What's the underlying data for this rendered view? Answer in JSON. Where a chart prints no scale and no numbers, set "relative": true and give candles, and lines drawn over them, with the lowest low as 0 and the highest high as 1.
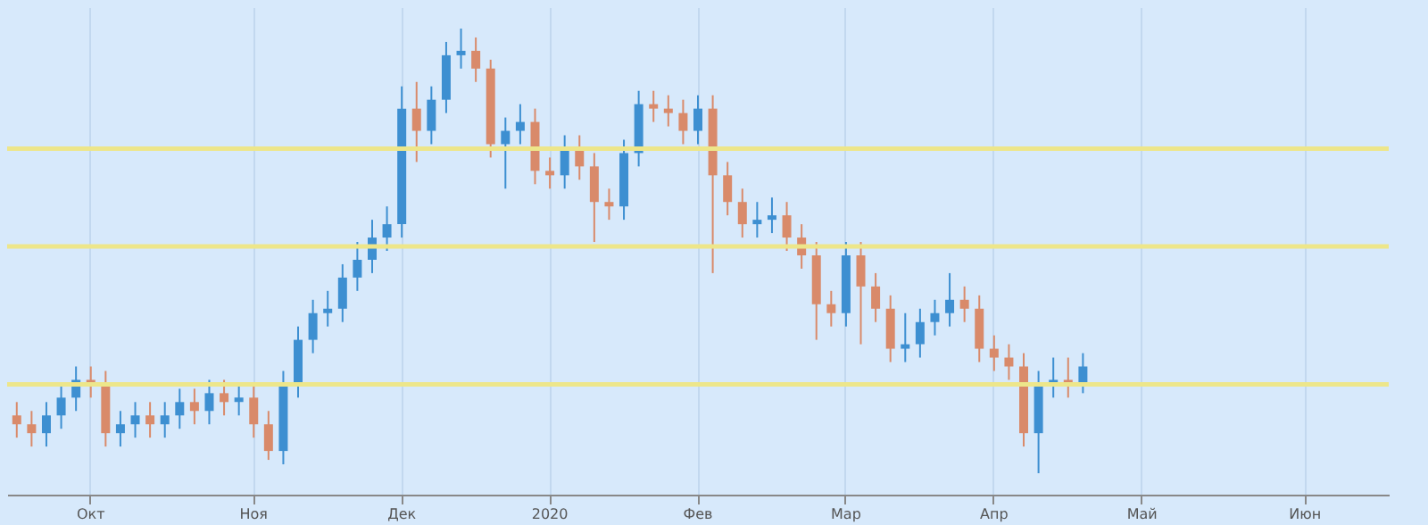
{
  "chart_data": {
    "type": "candlestick",
    "relative": true,
    "grid": "x",
    "categories": [
      null,
      null,
      null,
      null,
      null,
      "Окт",
      null,
      null,
      null,
      null,
      null,
      null,
      null,
      null,
      null,
      null,
      "Ноя",
      null,
      null,
      null,
      null,
      null,
      null,
      null,
      null,
      null,
      "Дек",
      null,
      null,
      null,
      null,
      null,
      null,
      null,
      null,
      null,
      "2020",
      null,
      null,
      null,
      null,
      null,
      null,
      null,
      null,
      null,
      "Фев",
      null,
      null,
      null,
      null,
      null,
      null,
      null,
      null,
      null,
      "Мар",
      null,
      null,
      null,
      null,
      null,
      null,
      null,
      null,
      null,
      "Апр",
      null,
      null,
      null,
      null,
      null,
      null,
      null,
      null,
      null,
      "Май",
      null,
      null,
      null,
      null,
      null,
      null,
      null,
      null,
      null,
      null,
      "Июн",
      null,
      null,
      null,
      null,
      null
    ],
    "ohlc": [
      [
        0.13,
        0.16,
        0.08,
        0.11
      ],
      [
        0.11,
        0.14,
        0.06,
        0.09
      ],
      [
        0.09,
        0.16,
        0.06,
        0.13
      ],
      [
        0.13,
        0.2,
        0.1,
        0.17
      ],
      [
        0.17,
        0.24,
        0.14,
        0.21
      ],
      [
        0.21,
        0.24,
        0.17,
        0.2
      ],
      [
        0.2,
        0.23,
        0.06,
        0.09
      ],
      [
        0.09,
        0.14,
        0.06,
        0.11
      ],
      [
        0.11,
        0.16,
        0.08,
        0.13
      ],
      [
        0.13,
        0.16,
        0.08,
        0.11
      ],
      [
        0.11,
        0.16,
        0.08,
        0.13
      ],
      [
        0.13,
        0.19,
        0.1,
        0.16
      ],
      [
        0.16,
        0.19,
        0.11,
        0.14
      ],
      [
        0.14,
        0.21,
        0.11,
        0.18
      ],
      [
        0.18,
        0.21,
        0.13,
        0.16
      ],
      [
        0.16,
        0.2,
        0.13,
        0.17
      ],
      [
        0.17,
        0.2,
        0.08,
        0.11
      ],
      [
        0.11,
        0.14,
        0.03,
        0.05
      ],
      [
        0.05,
        0.23,
        0.02,
        0.2
      ],
      [
        0.2,
        0.33,
        0.17,
        0.3
      ],
      [
        0.3,
        0.39,
        0.27,
        0.36
      ],
      [
        0.36,
        0.41,
        0.33,
        0.37
      ],
      [
        0.37,
        0.47,
        0.34,
        0.44
      ],
      [
        0.44,
        0.52,
        0.41,
        0.48
      ],
      [
        0.48,
        0.57,
        0.45,
        0.53
      ],
      [
        0.53,
        0.6,
        0.5,
        0.56
      ],
      [
        0.56,
        0.87,
        0.53,
        0.82
      ],
      [
        0.82,
        0.88,
        0.7,
        0.77
      ],
      [
        0.77,
        0.87,
        0.74,
        0.84
      ],
      [
        0.84,
        0.97,
        0.81,
        0.94
      ],
      [
        0.94,
        1,
        0.91,
        0.95
      ],
      [
        0.95,
        0.98,
        0.88,
        0.91
      ],
      [
        0.91,
        0.93,
        0.71,
        0.74
      ],
      [
        0.74,
        0.8,
        0.64,
        0.77
      ],
      [
        0.77,
        0.83,
        0.74,
        0.79
      ],
      [
        0.79,
        0.82,
        0.65,
        0.68
      ],
      [
        0.68,
        0.71,
        0.64,
        0.67
      ],
      [
        0.67,
        0.76,
        0.64,
        0.73
      ],
      [
        0.73,
        0.76,
        0.66,
        0.69
      ],
      [
        0.69,
        0.72,
        0.52,
        0.61
      ],
      [
        0.61,
        0.64,
        0.57,
        0.6
      ],
      [
        0.6,
        0.75,
        0.57,
        0.72
      ],
      [
        0.72,
        0.86,
        0.69,
        0.83
      ],
      [
        0.83,
        0.86,
        0.79,
        0.82
      ],
      [
        0.82,
        0.85,
        0.78,
        0.81
      ],
      [
        0.81,
        0.84,
        0.74,
        0.77
      ],
      [
        0.77,
        0.85,
        0.74,
        0.82
      ],
      [
        0.82,
        0.85,
        0.45,
        0.67
      ],
      [
        0.67,
        0.7,
        0.58,
        0.61
      ],
      [
        0.61,
        0.64,
        0.53,
        0.56
      ],
      [
        0.56,
        0.61,
        0.53,
        0.57
      ],
      [
        0.57,
        0.62,
        0.54,
        0.58
      ],
      [
        0.58,
        0.61,
        0.5,
        0.53
      ],
      [
        0.53,
        0.56,
        0.46,
        0.49
      ],
      [
        0.49,
        0.52,
        0.3,
        0.38
      ],
      [
        0.38,
        0.41,
        0.33,
        0.36
      ],
      [
        0.36,
        0.52,
        0.33,
        0.49
      ],
      [
        0.49,
        0.52,
        0.29,
        0.42
      ],
      [
        0.42,
        0.45,
        0.34,
        0.37
      ],
      [
        0.37,
        0.4,
        0.25,
        0.28
      ],
      [
        0.28,
        0.36,
        0.25,
        0.29
      ],
      [
        0.29,
        0.37,
        0.26,
        0.34
      ],
      [
        0.34,
        0.39,
        0.31,
        0.36
      ],
      [
        0.36,
        0.45,
        0.33,
        0.39
      ],
      [
        0.39,
        0.42,
        0.34,
        0.37
      ],
      [
        0.37,
        0.4,
        0.25,
        0.28
      ],
      [
        0.28,
        0.31,
        0.23,
        0.26
      ],
      [
        0.26,
        0.29,
        0.21,
        0.24
      ],
      [
        0.24,
        0.27,
        0.06,
        0.09
      ],
      [
        0.09,
        0.23,
        0,
        0.2
      ],
      [
        0.2,
        0.26,
        0.17,
        0.21
      ],
      [
        0.21,
        0.26,
        0.17,
        0.2
      ],
      [
        0.2,
        0.27,
        0.18,
        0.24
      ],
      null,
      null,
      null,
      null,
      null,
      null,
      null,
      null,
      null,
      null,
      null,
      null,
      null,
      null,
      null,
      null,
      null,
      null,
      null,
      null
    ],
    "colors": [
      "#d98a6a",
      "#d98a6a",
      "#3d8fd1",
      "#3d8fd1",
      "#3d8fd1",
      "#d98a6a",
      "#d98a6a",
      "#3d8fd1",
      "#3d8fd1",
      "#d98a6a",
      "#3d8fd1",
      "#3d8fd1",
      "#d98a6a",
      "#3d8fd1",
      "#d98a6a",
      "#3d8fd1",
      "#d98a6a",
      "#d98a6a",
      "#3d8fd1",
      "#3d8fd1",
      "#3d8fd1",
      "#3d8fd1",
      "#3d8fd1",
      "#3d8fd1",
      "#3d8fd1",
      "#3d8fd1",
      "#3d8fd1",
      "#d98a6a",
      "#3d8fd1",
      "#3d8fd1",
      "#3d8fd1",
      "#d98a6a",
      "#d98a6a",
      "#3d8fd1",
      "#3d8fd1",
      "#d98a6a",
      "#d98a6a",
      "#3d8fd1",
      "#d98a6a",
      "#d98a6a",
      "#d98a6a",
      "#3d8fd1",
      "#3d8fd1",
      "#d98a6a",
      "#d98a6a",
      "#d98a6a",
      "#3d8fd1",
      "#d98a6a",
      "#d98a6a",
      "#d98a6a",
      "#3d8fd1",
      "#3d8fd1",
      "#d98a6a",
      "#d98a6a",
      "#d98a6a",
      "#d98a6a",
      "#3d8fd1",
      "#d98a6a",
      "#d98a6a",
      "#d98a6a",
      "#3d8fd1",
      "#3d8fd1",
      "#3d8fd1",
      "#3d8fd1",
      "#d98a6a",
      "#d98a6a",
      "#d98a6a",
      "#d98a6a",
      "#d98a6a",
      "#3d8fd1",
      "#3d8fd1",
      "#d98a6a",
      "#3d8fd1",
      null,
      null,
      null,
      null,
      null,
      null,
      null,
      null,
      null,
      null,
      null,
      null,
      null,
      null,
      null,
      null,
      null,
      null,
      null,
      null
    ],
    "ref_lines": [
      {
        "axis": "y",
        "value": 0.73,
        "color": "#ede68a"
      },
      {
        "axis": "y",
        "value": 0.51,
        "color": "#ede68a"
      },
      {
        "axis": "y",
        "value": 0.2,
        "color": "#ede68a"
      }
    ]
  }
}
